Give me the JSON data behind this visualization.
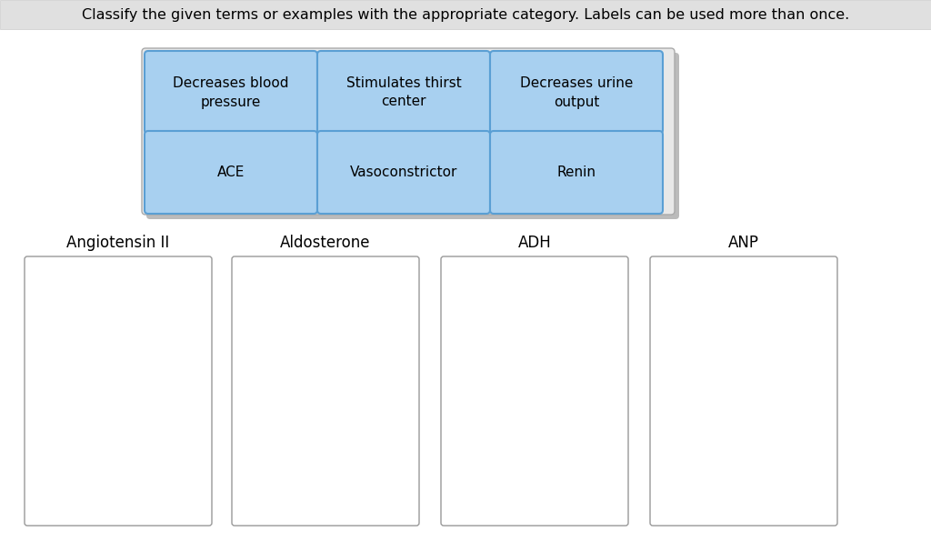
{
  "title": "Classify the given terms or examples with the appropriate category. Labels can be used more than once.",
  "title_fontsize": 11.5,
  "background_color": "#ffffff",
  "label_buttons": [
    {
      "text": "Decreases blood\npressure",
      "row": 0,
      "col": 0
    },
    {
      "text": "Stimulates thirst\ncenter",
      "row": 0,
      "col": 1
    },
    {
      "text": "Decreases urine\noutput",
      "row": 0,
      "col": 2
    },
    {
      "text": "ACE",
      "row": 1,
      "col": 0
    },
    {
      "text": "Vasoconstrictor",
      "row": 1,
      "col": 1
    },
    {
      "text": "Renin",
      "row": 1,
      "col": 2
    }
  ],
  "button_color": "#a8d0f0",
  "button_edge_color": "#5a9fd4",
  "button_fontsize": 11,
  "categories": [
    "Angiotensin II",
    "Aldosterone",
    "ADH",
    "ANP"
  ],
  "category_fontsize": 12,
  "category_box_color": "#ffffff",
  "category_box_edge": "#999999",
  "title_bar_color": "#e0e0e0",
  "title_bar_edge": "#cccccc",
  "shadow_color": "#bbbbbb",
  "btn_group_bg": "#e8e8e8",
  "btn_group_border": "#aaaaaa"
}
